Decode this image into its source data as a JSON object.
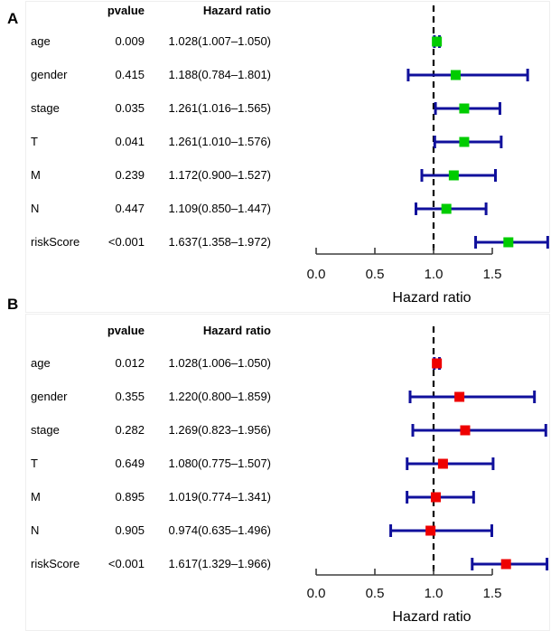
{
  "figure": {
    "panel_labels": [
      "A",
      "B"
    ]
  },
  "colors": {
    "marker_panel_a": "#00CC00",
    "marker_panel_b": "#EE0000",
    "ci_bar": "#10109C",
    "dashed_refline": "#000000",
    "axis": "#3d3d3d",
    "text": "#000000"
  },
  "chart_data": [
    {
      "type": "scatter",
      "variant": "forest-plot",
      "panel_label": "A",
      "columns": {
        "pvalue_header": "pvalue",
        "hazard_header": "Hazard ratio"
      },
      "xlabel": "Hazard ratio",
      "xlim": [
        0,
        2.0
      ],
      "refline": 1.0,
      "grid": false,
      "marker_color": "#00CC00",
      "x_ticks": [
        {
          "label": "0.0",
          "value": 0.0
        },
        {
          "label": "0.5",
          "value": 0.5
        },
        {
          "label": "1.0",
          "value": 1.0
        },
        {
          "label": "1.5",
          "value": 1.5
        }
      ],
      "rows": [
        {
          "label": "age",
          "pvalue": "0.009",
          "hr_text": "1.028(1.007–1.050)",
          "hr": 1.028,
          "ci_low": 1.007,
          "ci_high": 1.05
        },
        {
          "label": "gender",
          "pvalue": "0.415",
          "hr_text": "1.188(0.784–1.801)",
          "hr": 1.188,
          "ci_low": 0.784,
          "ci_high": 1.801
        },
        {
          "label": "stage",
          "pvalue": "0.035",
          "hr_text": "1.261(1.016–1.565)",
          "hr": 1.261,
          "ci_low": 1.016,
          "ci_high": 1.565
        },
        {
          "label": "T",
          "pvalue": "0.041",
          "hr_text": "1.261(1.010–1.576)",
          "hr": 1.261,
          "ci_low": 1.01,
          "ci_high": 1.576
        },
        {
          "label": "M",
          "pvalue": "0.239",
          "hr_text": "1.172(0.900–1.527)",
          "hr": 1.172,
          "ci_low": 0.9,
          "ci_high": 1.527
        },
        {
          "label": "N",
          "pvalue": "0.447",
          "hr_text": "1.109(0.850–1.447)",
          "hr": 1.109,
          "ci_low": 0.85,
          "ci_high": 1.447
        },
        {
          "label": "riskScore",
          "pvalue": "<0.001",
          "hr_text": "1.637(1.358–1.972)",
          "hr": 1.637,
          "ci_low": 1.358,
          "ci_high": 1.972
        }
      ]
    },
    {
      "type": "scatter",
      "variant": "forest-plot",
      "panel_label": "B",
      "columns": {
        "pvalue_header": "pvalue",
        "hazard_header": "Hazard ratio"
      },
      "xlabel": "Hazard ratio",
      "xlim": [
        0,
        2.0
      ],
      "refline": 1.0,
      "grid": false,
      "marker_color": "#EE0000",
      "x_ticks": [
        {
          "label": "0.0",
          "value": 0.0
        },
        {
          "label": "0.5",
          "value": 0.5
        },
        {
          "label": "1.0",
          "value": 1.0
        },
        {
          "label": "1.5",
          "value": 1.5
        }
      ],
      "rows": [
        {
          "label": "age",
          "pvalue": "0.012",
          "hr_text": "1.028(1.006–1.050)",
          "hr": 1.028,
          "ci_low": 1.006,
          "ci_high": 1.05
        },
        {
          "label": "gender",
          "pvalue": "0.355",
          "hr_text": "1.220(0.800–1.859)",
          "hr": 1.22,
          "ci_low": 0.8,
          "ci_high": 1.859
        },
        {
          "label": "stage",
          "pvalue": "0.282",
          "hr_text": "1.269(0.823–1.956)",
          "hr": 1.269,
          "ci_low": 0.823,
          "ci_high": 1.956
        },
        {
          "label": "T",
          "pvalue": "0.649",
          "hr_text": "1.080(0.775–1.507)",
          "hr": 1.08,
          "ci_low": 0.775,
          "ci_high": 1.507
        },
        {
          "label": "M",
          "pvalue": "0.895",
          "hr_text": "1.019(0.774–1.341)",
          "hr": 1.019,
          "ci_low": 0.774,
          "ci_high": 1.341
        },
        {
          "label": "N",
          "pvalue": "0.905",
          "hr_text": "0.974(0.635–1.496)",
          "hr": 0.974,
          "ci_low": 0.635,
          "ci_high": 1.496
        },
        {
          "label": "riskScore",
          "pvalue": "<0.001",
          "hr_text": "1.617(1.329–1.966)",
          "hr": 1.617,
          "ci_low": 1.329,
          "ci_high": 1.966
        }
      ]
    }
  ]
}
